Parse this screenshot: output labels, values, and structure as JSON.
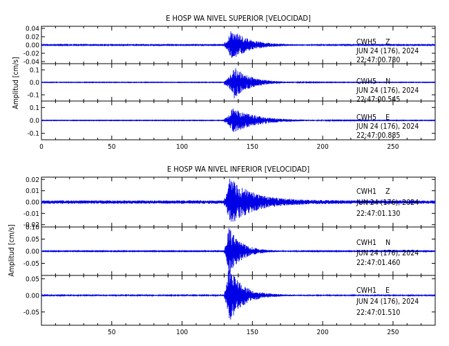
{
  "chart_data": [
    {
      "type": "line",
      "title": "E HOSP WA NIVEL SUPERIOR [VELOCIDAD]",
      "ylabel": "Amplitud [cm/s]",
      "xlabel": "",
      "xlim": [
        0,
        280
      ],
      "x_ticks": [
        "0",
        "50",
        "100",
        "150",
        "200",
        "250"
      ],
      "grid": false,
      "traces": [
        {
          "station": "CWH5",
          "component": "Z",
          "date": "JUN 24 (176), 2024",
          "time": "22:47:00.780",
          "ylim": [
            -0.045,
            0.045
          ],
          "y_ticks": [
            "0.04",
            "0.02",
            "0.00",
            "-0.02",
            "-0.04"
          ],
          "arrival_s": 130,
          "peak_s": 135,
          "peak_amp": 0.04,
          "noise_amp": 0.001,
          "decay_s": 12
        },
        {
          "station": "CWH5",
          "component": "N",
          "date": "JUN 24 (176), 2024",
          "time": "22:47:00.545",
          "ylim": [
            -0.15,
            0.15
          ],
          "y_ticks": [
            "0.1",
            "0.0",
            "-0.1"
          ],
          "arrival_s": 130,
          "peak_s": 137,
          "peak_amp": 0.13,
          "noise_amp": 0.002,
          "decay_s": 11
        },
        {
          "station": "CWH5",
          "component": "E",
          "date": "JUN 24 (176), 2024",
          "time": "22:47:00.885",
          "ylim": [
            -0.15,
            0.15
          ],
          "y_ticks": [
            "0.1",
            "0.0",
            "-0.1"
          ],
          "arrival_s": 130,
          "peak_s": 136,
          "peak_amp": 0.1,
          "noise_amp": 0.002,
          "decay_s": 16
        }
      ]
    },
    {
      "type": "line",
      "title": "E HOSP WA NIVEL INFERIOR [VELOCIDAD]",
      "ylabel": "Amplitud [cm/s]",
      "xlabel": "",
      "xlim": [
        0,
        280
      ],
      "x_ticks": [
        "50",
        "100",
        "150",
        "200",
        "250"
      ],
      "grid": false,
      "traces": [
        {
          "station": "CWH1",
          "component": "Z",
          "date": "JUN 24 (176), 2024",
          "time": "22:47:01.130",
          "ylim": [
            -0.022,
            0.022
          ],
          "y_ticks": [
            "0.02",
            "0.01",
            "0.00",
            "-0.01",
            "-0.02"
          ],
          "arrival_s": 130,
          "peak_s": 134,
          "peak_amp": 0.02,
          "noise_amp": 0.0015,
          "decay_s": 16
        },
        {
          "station": "CWH1",
          "component": "N",
          "date": "JUN 24 (176), 2024",
          "time": "22:47:01.460",
          "ylim": [
            -0.1,
            0.1
          ],
          "y_ticks": [
            "0.10",
            "0.05",
            "0.00",
            "-0.05"
          ],
          "arrival_s": 130,
          "peak_s": 133,
          "peak_amp": 0.1,
          "noise_amp": 0.0015,
          "decay_s": 9
        },
        {
          "station": "CWH1",
          "component": "E",
          "date": "JUN 24 (176), 2024",
          "time": "22:47:01.510",
          "ylim": [
            -0.09,
            0.06
          ],
          "y_ticks": [
            "0.05",
            "0.00",
            "-0.05"
          ],
          "arrival_s": 130,
          "peak_s": 133,
          "peak_amp": 0.085,
          "noise_amp": 0.0015,
          "decay_s": 10
        }
      ]
    }
  ]
}
